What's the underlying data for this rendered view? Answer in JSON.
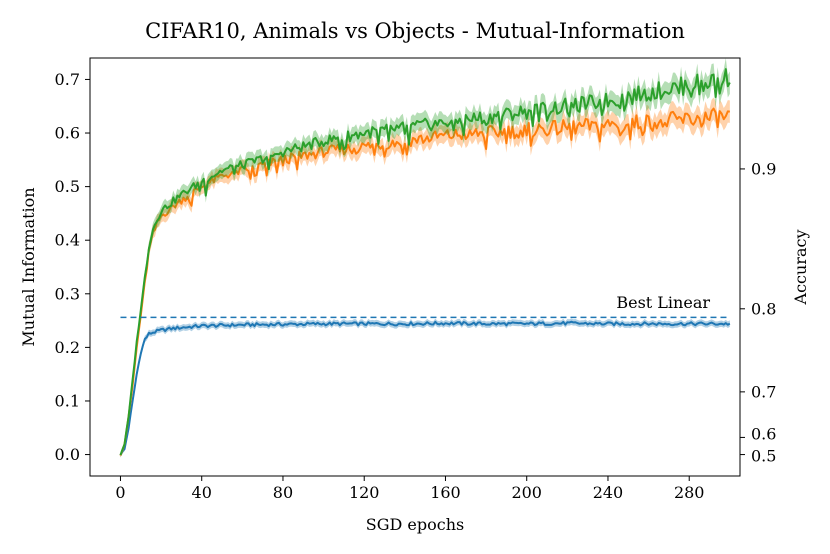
{
  "chart_data": {
    "type": "line",
    "title": "CIFAR10, Animals vs Objects - Mutual-Information",
    "xlabel": "SGD epochs",
    "ylabel": "Mutual Information",
    "y2label": "Accuracy",
    "xlim": [
      -15,
      305
    ],
    "ylim": [
      -0.04,
      0.74
    ],
    "xticks": [
      0,
      40,
      80,
      120,
      160,
      200,
      240,
      280
    ],
    "yticks": [
      0.0,
      0.1,
      0.2,
      0.3,
      0.4,
      0.5,
      0.6,
      0.7
    ],
    "y2ticks": [
      {
        "label": "0.5",
        "mi": 0.0
      },
      {
        "label": "0.6",
        "mi": 0.032
      },
      {
        "label": "0.7",
        "mi": 0.117
      },
      {
        "label": "0.8",
        "mi": 0.272
      },
      {
        "label": "0.9",
        "mi": 0.533
      }
    ],
    "grid": false,
    "annotation": {
      "text": "Best Linear",
      "value": 0.256
    },
    "reference_line": {
      "name": "Best Linear",
      "value": 0.256,
      "x_range": [
        0,
        300
      ],
      "style": "dashed",
      "color": "#1f77b4"
    },
    "series": [
      {
        "name": "blue",
        "color": "#1f77b4",
        "x": [
          0,
          2,
          4,
          6,
          8,
          10,
          12,
          14,
          16,
          18,
          20,
          25,
          30,
          40,
          50,
          60,
          80,
          100,
          120,
          140,
          160,
          180,
          200,
          220,
          240,
          260,
          280,
          300
        ],
        "values": [
          0.0,
          0.01,
          0.05,
          0.1,
          0.15,
          0.19,
          0.215,
          0.225,
          0.228,
          0.23,
          0.232,
          0.235,
          0.237,
          0.24,
          0.241,
          0.242,
          0.243,
          0.244,
          0.244,
          0.244,
          0.245,
          0.244,
          0.244,
          0.245,
          0.244,
          0.244,
          0.244,
          0.244
        ]
      },
      {
        "name": "orange",
        "color": "#ff7f0e",
        "x": [
          0,
          2,
          4,
          6,
          8,
          10,
          12,
          14,
          16,
          18,
          20,
          25,
          30,
          40,
          50,
          60,
          80,
          100,
          120,
          140,
          160,
          180,
          200,
          220,
          240,
          260,
          280,
          300
        ],
        "values": [
          0.0,
          0.02,
          0.07,
          0.13,
          0.2,
          0.26,
          0.32,
          0.38,
          0.41,
          0.43,
          0.445,
          0.46,
          0.475,
          0.5,
          0.52,
          0.53,
          0.55,
          0.565,
          0.575,
          0.585,
          0.595,
          0.6,
          0.605,
          0.61,
          0.615,
          0.62,
          0.625,
          0.63
        ]
      },
      {
        "name": "green",
        "color": "#2ca02c",
        "x": [
          0,
          2,
          4,
          6,
          8,
          10,
          12,
          14,
          16,
          18,
          20,
          25,
          30,
          40,
          50,
          60,
          80,
          100,
          120,
          140,
          160,
          180,
          200,
          220,
          240,
          260,
          280,
          300
        ],
        "values": [
          0.0,
          0.02,
          0.07,
          0.14,
          0.21,
          0.27,
          0.33,
          0.39,
          0.42,
          0.44,
          0.455,
          0.47,
          0.485,
          0.51,
          0.53,
          0.54,
          0.565,
          0.585,
          0.6,
          0.61,
          0.62,
          0.63,
          0.64,
          0.65,
          0.66,
          0.675,
          0.69,
          0.705
        ]
      }
    ]
  }
}
